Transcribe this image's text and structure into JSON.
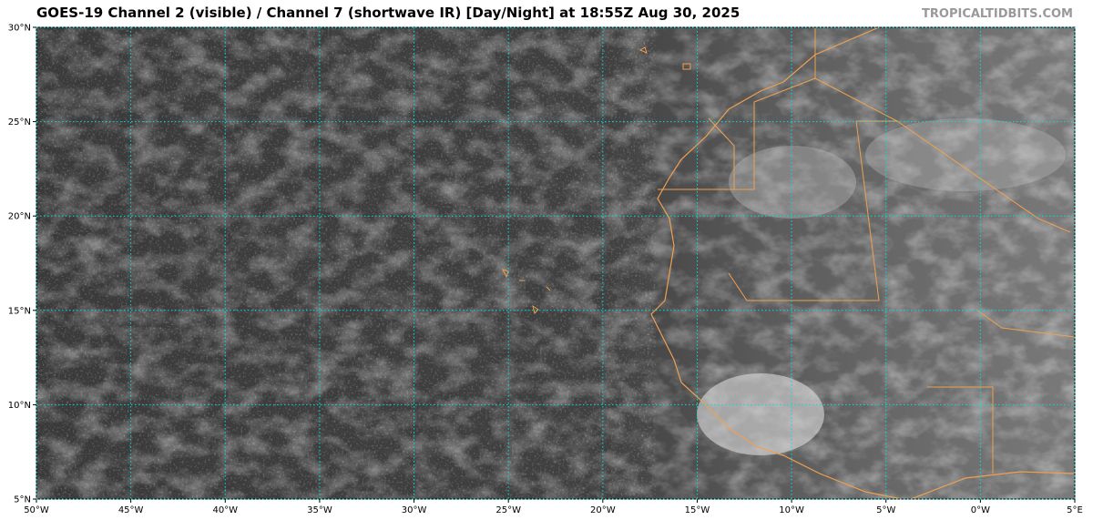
{
  "chart_data": {
    "type": "map",
    "title": "GOES-19 Channel 2 (visible) / Channel 7 (shortwave IR) [Day/Night] at 18:55Z Aug 30, 2025",
    "watermark": "TROPICALTIDBITS.COM",
    "xlim": [
      -50,
      5
    ],
    "ylim": [
      5,
      30
    ],
    "xticks": [
      {
        "value": -50,
        "label": "50°W"
      },
      {
        "value": -45,
        "label": "45°W"
      },
      {
        "value": -40,
        "label": "40°W"
      },
      {
        "value": -35,
        "label": "35°W"
      },
      {
        "value": -30,
        "label": "30°W"
      },
      {
        "value": -25,
        "label": "25°W"
      },
      {
        "value": -20,
        "label": "20°W"
      },
      {
        "value": -15,
        "label": "15°W"
      },
      {
        "value": -10,
        "label": "10°W"
      },
      {
        "value": -5,
        "label": "5°W"
      },
      {
        "value": 0,
        "label": "0°W"
      },
      {
        "value": 5,
        "label": "5°E"
      }
    ],
    "yticks": [
      {
        "value": 5,
        "label": "5°N"
      },
      {
        "value": 10,
        "label": "10°N"
      },
      {
        "value": 15,
        "label": "15°N"
      },
      {
        "value": 20,
        "label": "20°N"
      },
      {
        "value": 25,
        "label": "25°N"
      },
      {
        "value": 30,
        "label": "30°N"
      }
    ],
    "grid": true,
    "grid_color": "#00e0e0",
    "coast_color": "#f0a050"
  }
}
